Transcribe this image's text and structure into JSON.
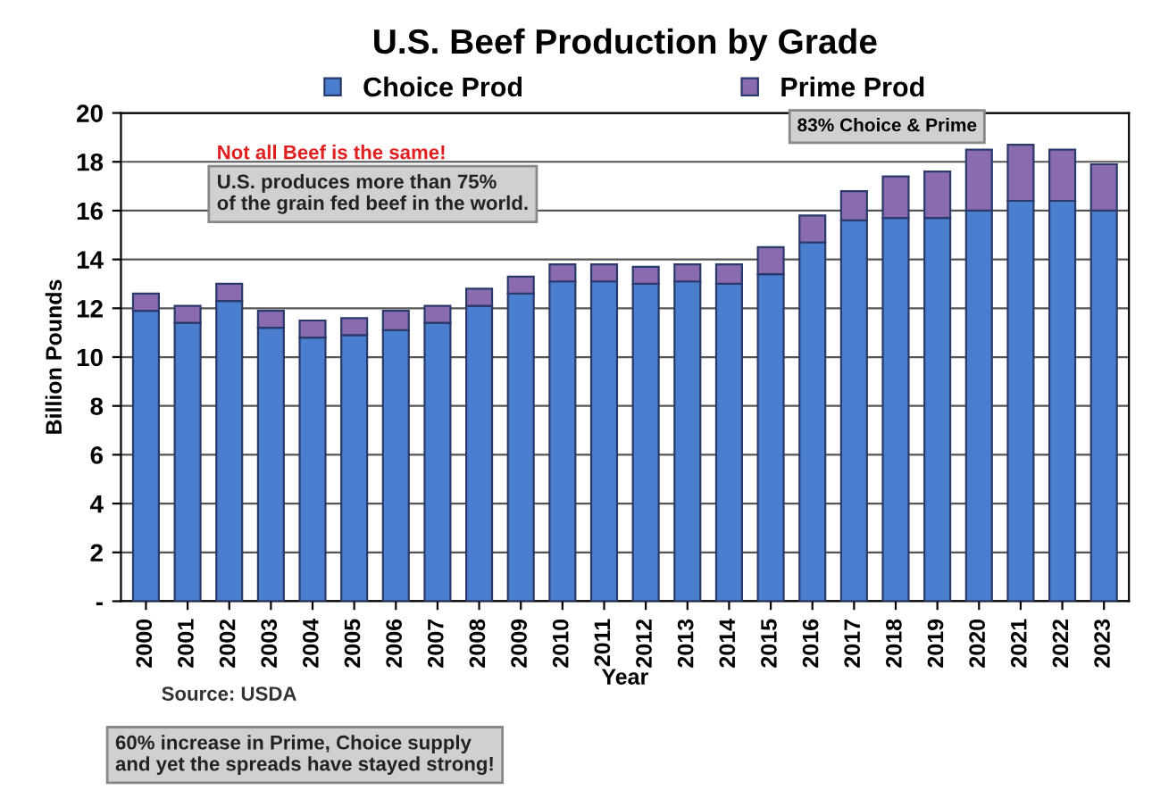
{
  "chart_data": {
    "type": "bar",
    "stacked": true,
    "title": "U.S. Beef Production by Grade",
    "xlabel": "Year",
    "ylabel": "Billion Pounds",
    "categories": [
      "2000",
      "2001",
      "2002",
      "2003",
      "2004",
      "2005",
      "2006",
      "2007",
      "2008",
      "2009",
      "2010",
      "2011",
      "2012",
      "2013",
      "2014",
      "2015",
      "2016",
      "2017",
      "2018",
      "2019",
      "2020",
      "2021",
      "2022",
      "2023"
    ],
    "series": [
      {
        "name": "Choice Prod",
        "color": "#4a7fcf",
        "values": [
          11.9,
          11.4,
          12.3,
          11.2,
          10.8,
          10.9,
          11.1,
          11.4,
          12.1,
          12.6,
          13.1,
          13.1,
          13.0,
          13.1,
          13.0,
          13.4,
          14.7,
          15.6,
          15.7,
          15.7,
          16.0,
          16.4,
          16.4,
          16.0
        ]
      },
      {
        "name": "Prime Prod",
        "color": "#8a6bb0",
        "values": [
          0.7,
          0.7,
          0.7,
          0.7,
          0.7,
          0.7,
          0.8,
          0.7,
          0.7,
          0.7,
          0.7,
          0.7,
          0.7,
          0.7,
          0.8,
          1.1,
          1.1,
          1.2,
          1.7,
          1.9,
          2.5,
          2.3,
          2.1,
          1.9
        ]
      }
    ],
    "ylim": [
      0,
      20
    ],
    "yticks": [
      {
        "value": 0,
        "label": "-"
      },
      2,
      4,
      6,
      8,
      10,
      12,
      14,
      16,
      18,
      20
    ],
    "grid": "y",
    "legend": "top",
    "annotations": [
      "Not all Beef is the same!",
      "U.S. produces more than 75%\nof the grain fed beef in the world.",
      "83% Choice & Prime",
      "Source: USDA",
      "60% increase in Prime, Choice supply\nand yet the spreads have stayed strong!"
    ]
  }
}
